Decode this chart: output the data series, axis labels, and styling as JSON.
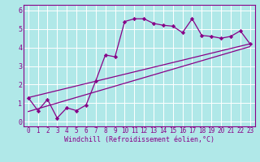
{
  "bg_color": "#b0e8e8",
  "line_color": "#880088",
  "grid_color": "#ffffff",
  "spine_color": "#880088",
  "xlim": [
    -0.5,
    23.5
  ],
  "ylim": [
    -0.25,
    6.3
  ],
  "xtick_vals": [
    0,
    1,
    2,
    3,
    4,
    5,
    6,
    7,
    8,
    9,
    10,
    11,
    12,
    13,
    14,
    15,
    16,
    17,
    18,
    19,
    20,
    21,
    22,
    23
  ],
  "xtick_labels": [
    "0",
    "1",
    "2",
    "3",
    "4",
    "5",
    "6",
    "7",
    "8",
    "9",
    "10",
    "11",
    "12",
    "13",
    "14",
    "15",
    "16",
    "17",
    "18",
    "19",
    "20",
    "21",
    "22",
    "23"
  ],
  "ytick_vals": [
    0,
    1,
    2,
    3,
    4,
    5,
    6
  ],
  "ytick_labels": [
    "0",
    "1",
    "2",
    "3",
    "4",
    "5",
    "6"
  ],
  "scatter_x": [
    0,
    1,
    2,
    3,
    4,
    5,
    6,
    7,
    8,
    9,
    10,
    11,
    12,
    13,
    14,
    15,
    16,
    17,
    18,
    19,
    20,
    21,
    22,
    23
  ],
  "scatter_y": [
    1.3,
    0.6,
    1.2,
    0.2,
    0.75,
    0.6,
    0.9,
    2.2,
    3.6,
    3.5,
    5.4,
    5.55,
    5.55,
    5.3,
    5.2,
    5.15,
    4.8,
    5.55,
    4.65,
    4.6,
    4.5,
    4.6,
    4.9,
    4.2
  ],
  "line1_x": [
    0,
    23
  ],
  "line1_y": [
    1.3,
    4.2
  ],
  "line2_x": [
    0,
    23
  ],
  "line2_y": [
    0.55,
    4.05
  ],
  "xlabel": "Windchill (Refroidissement éolien,°C)",
  "xlabel_fontsize": 6.0,
  "tick_fontsize": 5.5,
  "marker": "D",
  "markersize": 2.2,
  "linewidth": 0.9
}
